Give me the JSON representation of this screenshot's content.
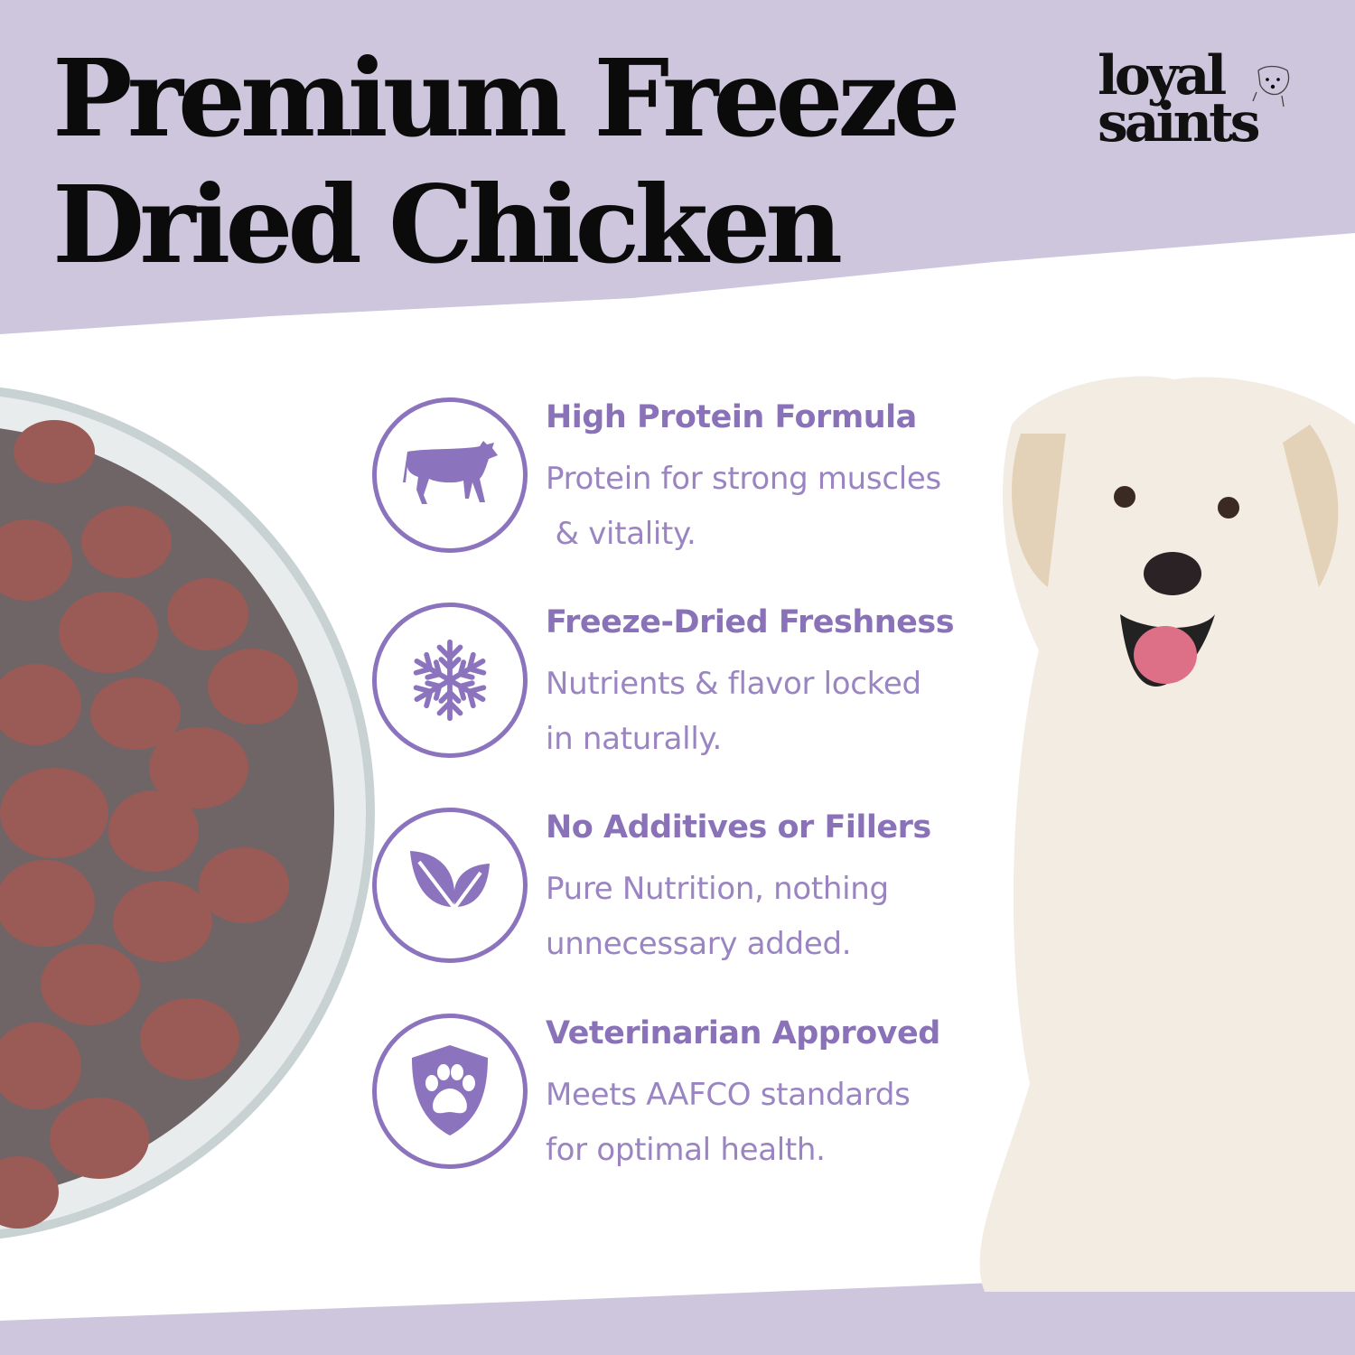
{
  "title": {
    "line1": "Premium Freeze",
    "line2": "Dried Chicken"
  },
  "logo": {
    "line1": "loyal",
    "line2": "saints"
  },
  "colors": {
    "background": "#cdc6dc",
    "accent": "#8c73bd",
    "panel": "#ffffff"
  },
  "features": [
    {
      "icon": "cow-icon",
      "heading": "High Protein Formula",
      "line1": "Protein for strong muscles",
      "line2": " & vitality."
    },
    {
      "icon": "snowflake-icon",
      "heading": "Freeze-Dried Freshness",
      "line1": "Nutrients & flavor locked",
      "line2": "in naturally."
    },
    {
      "icon": "leaf-icon",
      "heading": "No Additives or Fillers",
      "line1": "Pure Nutrition, nothing",
      "line2": "unnecessary added."
    },
    {
      "icon": "paw-shield-icon",
      "heading": "Veterinarian Approved",
      "line1": "Meets AAFCO standards",
      "line2": "for optimal health."
    }
  ]
}
